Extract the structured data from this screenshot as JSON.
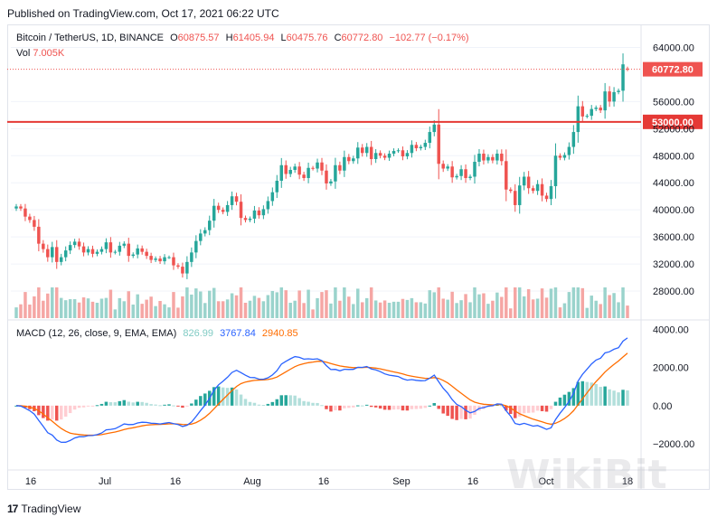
{
  "header": {
    "published": "Published on TradingView.com, Oct 17, 2021 06:22 UTC"
  },
  "legend": {
    "symbol": "Bitcoin / TetherUS, 1D, BINANCE",
    "o_label": "O",
    "o_value": "60875.57",
    "h_label": "H",
    "h_value": "61405.94",
    "l_label": "L",
    "l_value": "60475.76",
    "c_label": "C",
    "c_value": "60772.80",
    "change": "−102.77 (−0.17%)",
    "vol_label": "Vol",
    "vol_value": "7.005K"
  },
  "macd_legend": {
    "title": "MACD (12, 26, close, 9, EMA, EMA)",
    "hist_value": "826.99",
    "macd_value": "3767.84",
    "signal_value": "2940.85"
  },
  "footer": {
    "brand": "TradingView"
  },
  "colors": {
    "up": "#26a69a",
    "down": "#ef5350",
    "up_vol": "#9ad3cc",
    "down_vol": "#f5a6a4",
    "hline": "#e53935",
    "macd_line": "#2962ff",
    "signal_line": "#ff6d00",
    "hist_pos_strong": "#26a69a",
    "hist_pos_weak": "#b2dfdb",
    "hist_neg_strong": "#ef5350",
    "hist_neg_weak": "#ffcdd2"
  },
  "chart_data": [
    {
      "type": "candlestick",
      "title": "Bitcoin / TetherUS, 1D, BINANCE",
      "ylim": [
        24000,
        67000
      ],
      "y_ticks": [
        "64000.00",
        "56000.00",
        "52000.00",
        "48000.00",
        "44000.00",
        "40000.00",
        "36000.00",
        "32000.00",
        "28000.00"
      ],
      "x_ticks": [
        "16",
        "Jul",
        "16",
        "Aug",
        "16",
        "Sep",
        "16",
        "Oct",
        "18"
      ],
      "horizontal_line": {
        "value": 53000,
        "label": "53000.00"
      },
      "last_price": {
        "value": 60772.8,
        "label": "60772.80"
      },
      "close": [
        40500,
        40200,
        39000,
        38500,
        37500,
        35000,
        34200,
        33000,
        34500,
        32300,
        33000,
        34000,
        34800,
        35300,
        34600,
        33700,
        34200,
        33500,
        33800,
        34200,
        35200,
        33700,
        33800,
        34700,
        35000,
        33200,
        33400,
        34300,
        33800,
        33200,
        32600,
        32800,
        32400,
        33000,
        33000,
        31800,
        31600,
        30600,
        32300,
        33700,
        35400,
        36500,
        37000,
        38400,
        40600,
        40000,
        39700,
        40700,
        42000,
        41200,
        38800,
        38500,
        38700,
        39900,
        39200,
        40100,
        41300,
        42600,
        44300,
        46600,
        45300,
        45900,
        46400,
        45200,
        44700,
        46200,
        46100,
        47000,
        45800,
        43900,
        44200,
        46600,
        45800,
        47800,
        47200,
        47600,
        49200,
        48400,
        49300,
        47500,
        48400,
        48000,
        47700,
        48300,
        48700,
        48800,
        47900,
        48400,
        49600,
        49100,
        49300,
        49900,
        51500,
        52600,
        46800,
        46100,
        46400,
        44800,
        45000,
        46000,
        44700,
        44900,
        47100,
        48300,
        47300,
        47800,
        47300,
        48300,
        47200,
        43000,
        42800,
        40700,
        43600,
        44900,
        43200,
        42800,
        43800,
        42100,
        41600,
        43500,
        48000,
        47700,
        48100,
        49300,
        51500,
        55300,
        53800,
        53900,
        54900,
        55100,
        54700,
        57500,
        56000,
        57400,
        57600,
        61500,
        60773
      ],
      "volume_max": 250,
      "volume_source": "relative volume levels read from bars"
    },
    {
      "type": "macd",
      "title": "MACD (12, 26, close, 9, EMA, EMA)",
      "ylim": [
        -2900,
        4400
      ],
      "y_ticks": [
        "4000.00",
        "2000.00",
        "0.00",
        "−2000.00"
      ],
      "series": [
        {
          "name": "MACD",
          "color": "#2962ff"
        },
        {
          "name": "Signal",
          "color": "#ff6d00"
        },
        {
          "name": "Histogram",
          "color": "#26a69a"
        }
      ]
    }
  ]
}
